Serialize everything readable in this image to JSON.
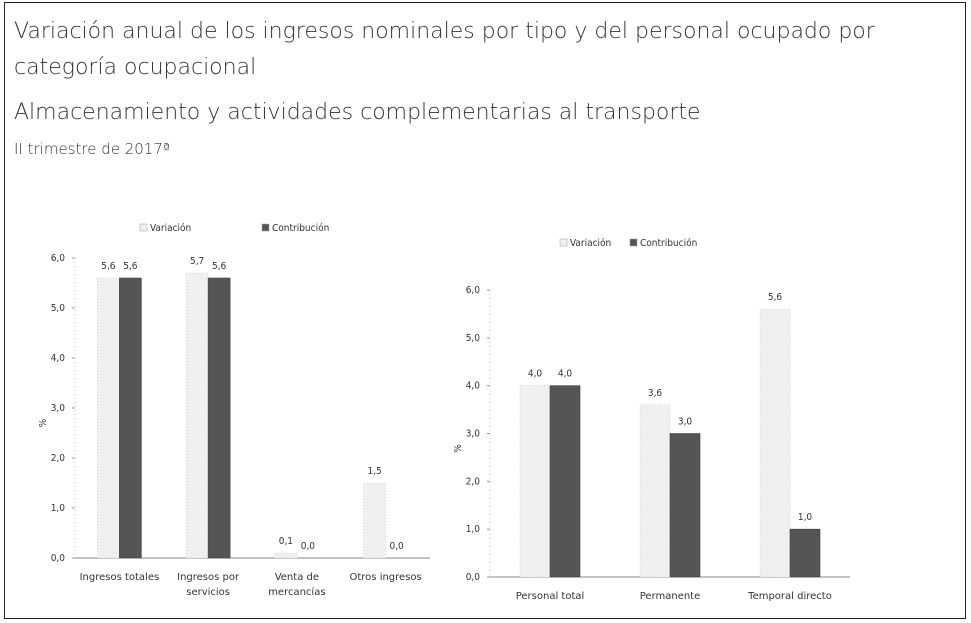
{
  "header": {
    "title": "Variación anual de los ingresos nominales por tipo y del personal ocupado por categoría ocupacional",
    "subtitle": "Almacenamiento y actividades complementarias al transporte",
    "period": "II trimestre de 2017ª"
  },
  "chart_data": [
    {
      "type": "bar",
      "y_label": "%",
      "categories": [
        "Ingresos totales",
        "Ingresos por servicios",
        "Venta de mercancías",
        "Otros ingresos"
      ],
      "series": [
        {
          "name": "Variación",
          "color": "#f0f0f0",
          "values": [
            5.6,
            5.7,
            0.1,
            1.5
          ],
          "value_labels": [
            "5,6",
            "5,7",
            "0,1",
            "1,5"
          ]
        },
        {
          "name": "Contribución",
          "color": "#555555",
          "values": [
            5.6,
            5.6,
            0.0,
            0.0
          ],
          "value_labels": [
            "5,6",
            "5,6",
            "0,0",
            "0,0"
          ]
        }
      ],
      "ylim": [
        0,
        6
      ],
      "yticks": [
        {
          "value": 0,
          "label": "0,0"
        },
        {
          "value": 1,
          "label": "1,0"
        },
        {
          "value": 2,
          "label": "2,0"
        },
        {
          "value": 3,
          "label": "3,0"
        },
        {
          "value": 4,
          "label": "4,0"
        },
        {
          "value": 5,
          "label": "5,0"
        },
        {
          "value": 6,
          "label": "6,0"
        }
      ]
    },
    {
      "type": "bar",
      "y_label": "%",
      "categories": [
        "Personal total",
        "Permanente",
        "Temporal directo"
      ],
      "series": [
        {
          "name": "Variación",
          "color": "#f0f0f0",
          "values": [
            4.0,
            3.6,
            5.6
          ],
          "value_labels": [
            "4,0",
            "3,6",
            "5,6"
          ]
        },
        {
          "name": "Contribución",
          "color": "#555555",
          "values": [
            4.0,
            3.0,
            1.0
          ],
          "value_labels": [
            "4,0",
            "3,0",
            "1,0"
          ]
        }
      ],
      "ylim": [
        0,
        6
      ],
      "yticks": [
        {
          "value": 0,
          "label": "0,0"
        },
        {
          "value": 1,
          "label": "1,0"
        },
        {
          "value": 2,
          "label": "2,0"
        },
        {
          "value": 3,
          "label": "3,0"
        },
        {
          "value": 4,
          "label": "4,0"
        },
        {
          "value": 5,
          "label": "5,0"
        },
        {
          "value": 6,
          "label": "6,0"
        }
      ]
    }
  ]
}
